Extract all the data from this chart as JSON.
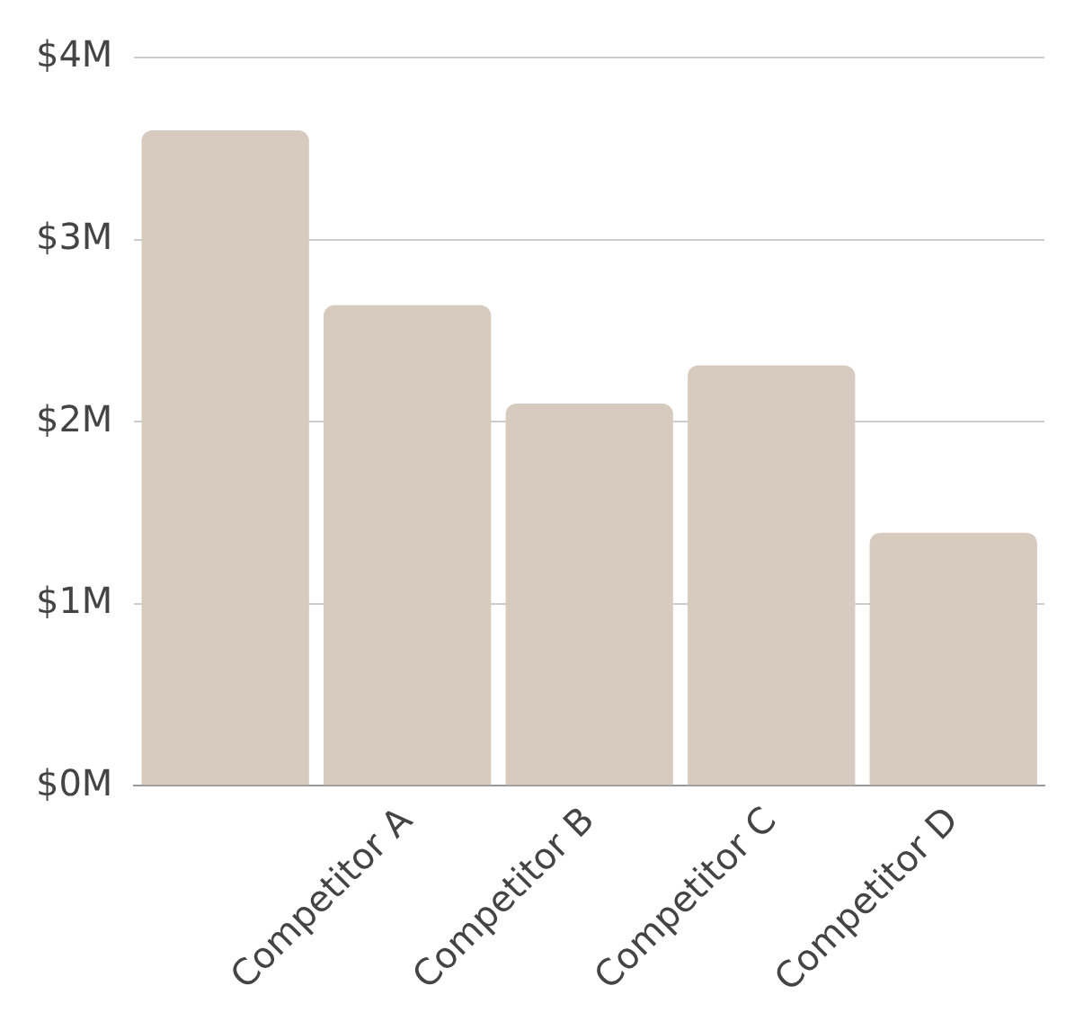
{
  "chart_data": {
    "type": "bar",
    "categories": [
      null,
      "Competitor A",
      "Competitor B",
      "Competitor C",
      "Competitor D"
    ],
    "values": [
      3.6,
      2.64,
      2.1,
      2.31,
      1.39
    ],
    "color": "#d7cbbf",
    "ylim": [
      0,
      4
    ],
    "yticks": [
      {
        "value": 0,
        "label": "$0M"
      },
      {
        "value": 1,
        "label": "$1M"
      },
      {
        "value": 2,
        "label": "$2M"
      },
      {
        "value": 3,
        "label": "$3M"
      },
      {
        "value": 4,
        "label": "$4M"
      }
    ],
    "grid": "y",
    "legend": false
  }
}
